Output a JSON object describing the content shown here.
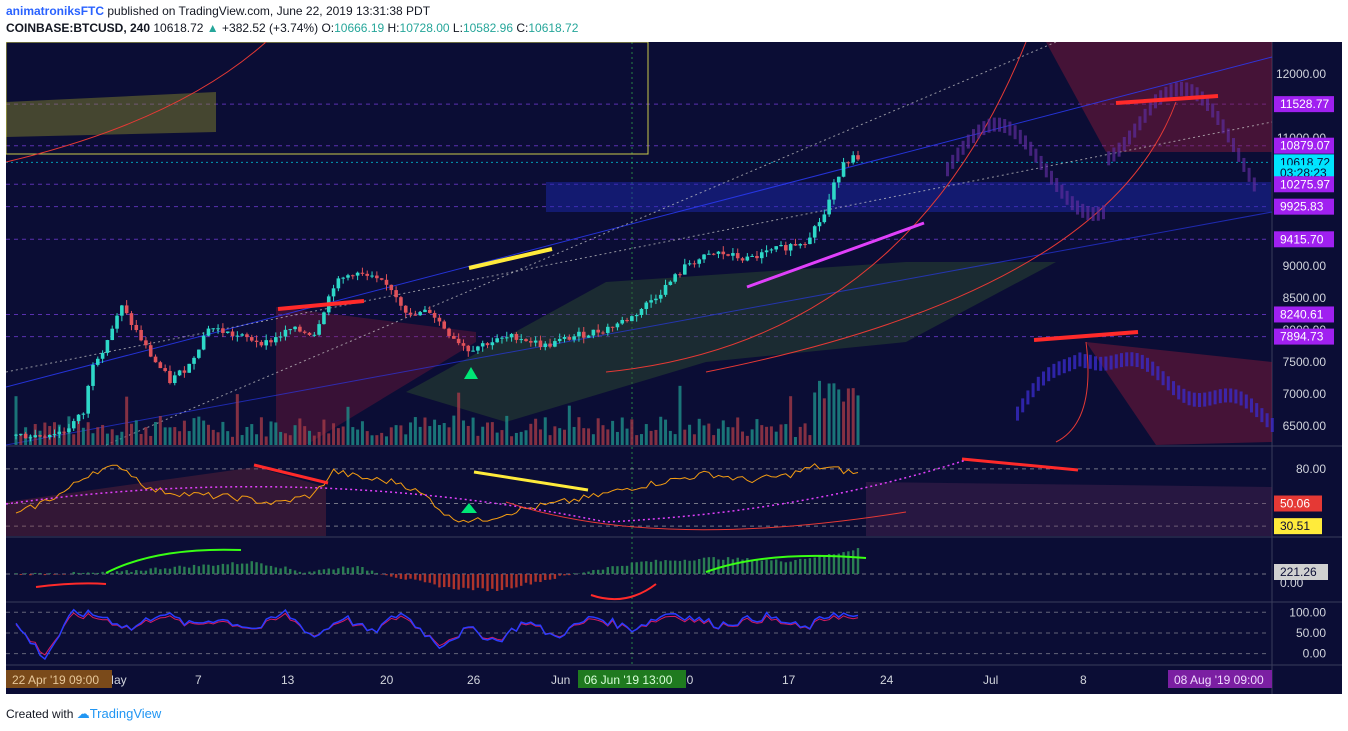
{
  "header": {
    "author": "animatroniksFTC",
    "published_text": "published on TradingView.com, June 22, 2019 13:31:38 PDT",
    "symbol": "COINBASE:BTCUSD, 240",
    "last": "10618.72",
    "change": "+382.52 (+3.74%)",
    "open_label": "O:",
    "open": "10666.19",
    "high_label": "H:",
    "high": "10728.00",
    "low_label": "L:",
    "low": "10582.96",
    "close_label": "C:",
    "close": "10618.72"
  },
  "footer": {
    "created_with": "Created with",
    "brand": "TradingView"
  },
  "colors": {
    "background": "#0b0d35",
    "up_candle": "#2ed8c8",
    "down_candle": "#e0525a",
    "rsi_line": "#f39c12",
    "yellow_line": "#ffeb3b",
    "red_line": "#ff2a2a",
    "magenta_line": "#e040fb",
    "green_line": "#39ff14",
    "blue_line": "#2b3cff"
  },
  "chart_data": {
    "type": "candlestick",
    "symbol": "COINBASE:BTCUSD",
    "interval": "240",
    "x_ticks": [
      "May",
      "7",
      "13",
      "20",
      "26",
      "Jun",
      "10",
      "17",
      "24",
      "Jul",
      "8"
    ],
    "x_date_labels": [
      "22 Apr '19   09:00",
      "06 Jun '19   13:00",
      "08 Aug '19   09:00"
    ],
    "price_axis": {
      "ticks": [
        "12000.00",
        "11000.00",
        "9000.00",
        "8500.00",
        "8000.00",
        "7500.00",
        "7000.00",
        "6500.00"
      ],
      "price_ticks": [
        12000,
        11000,
        9000,
        8500,
        8000,
        7500,
        7000,
        6500
      ],
      "range": [
        6200,
        12500
      ]
    },
    "price_labels": [
      {
        "text": "11528.77",
        "value": 11528.77,
        "kind": "level"
      },
      {
        "text": "10879.07",
        "value": 10879.07,
        "kind": "level"
      },
      {
        "text": "10618.72",
        "value": 10618.72,
        "kind": "last"
      },
      {
        "text": "03:28:23",
        "value": 10450,
        "kind": "countdown"
      },
      {
        "text": "10275.97",
        "value": 10275.97,
        "kind": "level"
      },
      {
        "text": "9925.83",
        "value": 9925.83,
        "kind": "level"
      },
      {
        "text": "9415.70",
        "value": 9415.7,
        "kind": "level"
      },
      {
        "text": "8240.61",
        "value": 8240.61,
        "kind": "level"
      },
      {
        "text": "7894.73",
        "value": 7894.73,
        "kind": "level"
      }
    ],
    "price_path": [
      [
        0,
        6350
      ],
      [
        5,
        6350
      ],
      [
        10,
        6420
      ],
      [
        14,
        6700
      ],
      [
        16,
        7500
      ],
      [
        18,
        7700
      ],
      [
        22,
        8350
      ],
      [
        28,
        7600
      ],
      [
        32,
        7200
      ],
      [
        36,
        7450
      ],
      [
        40,
        8050
      ],
      [
        46,
        7900
      ],
      [
        52,
        7800
      ],
      [
        57,
        8000
      ],
      [
        62,
        7950
      ],
      [
        66,
        8700
      ],
      [
        70,
        8900
      ],
      [
        74,
        8800
      ],
      [
        78,
        8650
      ],
      [
        82,
        8200
      ],
      [
        86,
        8300
      ],
      [
        90,
        7950
      ],
      [
        94,
        7700
      ],
      [
        98,
        7800
      ],
      [
        104,
        7900
      ],
      [
        110,
        7750
      ],
      [
        116,
        7900
      ],
      [
        122,
        8000
      ],
      [
        128,
        8200
      ],
      [
        134,
        8600
      ],
      [
        140,
        9050
      ],
      [
        146,
        9200
      ],
      [
        152,
        9100
      ],
      [
        158,
        9250
      ],
      [
        164,
        9400
      ],
      [
        168,
        9800
      ],
      [
        170,
        10250
      ],
      [
        172,
        10650
      ],
      [
        174,
        10700
      ],
      [
        175,
        10619
      ]
    ],
    "rsi": {
      "ticks": [
        "80.00"
      ],
      "tick_values": [
        80
      ],
      "labels": [
        {
          "text": "50.06",
          "value": 50.06
        },
        {
          "text": "30.51",
          "value": 30.51
        }
      ],
      "range": [
        22,
        98
      ],
      "path": [
        [
          0,
          40
        ],
        [
          10,
          60
        ],
        [
          16,
          78
        ],
        [
          22,
          82
        ],
        [
          28,
          62
        ],
        [
          36,
          58
        ],
        [
          46,
          55
        ],
        [
          54,
          50
        ],
        [
          62,
          58
        ],
        [
          66,
          78
        ],
        [
          72,
          72
        ],
        [
          80,
          68
        ],
        [
          86,
          54
        ],
        [
          90,
          38
        ],
        [
          96,
          35
        ],
        [
          104,
          44
        ],
        [
          112,
          50
        ],
        [
          120,
          56
        ],
        [
          128,
          64
        ],
        [
          136,
          70
        ],
        [
          144,
          76
        ],
        [
          152,
          70
        ],
        [
          160,
          74
        ],
        [
          166,
          82
        ],
        [
          170,
          80
        ],
        [
          175,
          76
        ]
      ]
    },
    "macd": {
      "labels": [
        {
          "text": "221.26"
        },
        {
          "text": "0.00"
        }
      ],
      "hist_path": [
        [
          0,
          0
        ],
        [
          20,
          10
        ],
        [
          30,
          60
        ],
        [
          50,
          120
        ],
        [
          60,
          20
        ],
        [
          70,
          80
        ],
        [
          80,
          -40
        ],
        [
          90,
          -140
        ],
        [
          100,
          -160
        ],
        [
          110,
          -60
        ],
        [
          120,
          40
        ],
        [
          130,
          120
        ],
        [
          145,
          160
        ],
        [
          160,
          130
        ],
        [
          170,
          200
        ],
        [
          175,
          260
        ]
      ]
    },
    "stoch": {
      "ticks": [
        "100.00",
        "50.00",
        "0.00"
      ],
      "tick_values": [
        100,
        50,
        0
      ],
      "range": [
        -25,
        120
      ],
      "path": [
        [
          0,
          70
        ],
        [
          6,
          -10
        ],
        [
          12,
          100
        ],
        [
          18,
          90
        ],
        [
          24,
          60
        ],
        [
          30,
          100
        ],
        [
          36,
          70
        ],
        [
          42,
          85
        ],
        [
          50,
          60
        ],
        [
          56,
          100
        ],
        [
          62,
          40
        ],
        [
          68,
          90
        ],
        [
          74,
          50
        ],
        [
          80,
          100
        ],
        [
          88,
          20
        ],
        [
          94,
          60
        ],
        [
          100,
          30
        ],
        [
          106,
          80
        ],
        [
          112,
          40
        ],
        [
          120,
          90
        ],
        [
          128,
          60
        ],
        [
          136,
          100
        ],
        [
          146,
          70
        ],
        [
          156,
          90
        ],
        [
          164,
          60
        ],
        [
          170,
          100
        ],
        [
          175,
          85
        ]
      ]
    }
  }
}
